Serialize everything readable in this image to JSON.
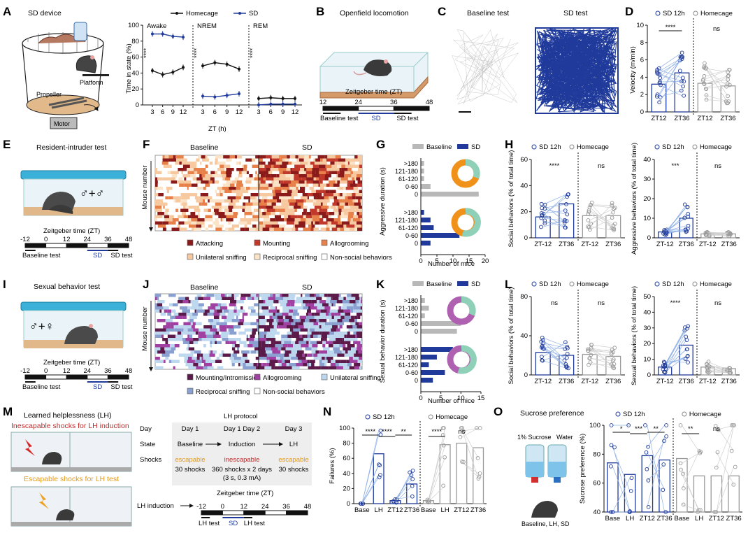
{
  "panel_letters": {
    "A": "A",
    "B": "B",
    "C": "C",
    "D": "D",
    "E": "E",
    "F": "F",
    "G": "G",
    "H": "H",
    "I": "I",
    "J": "J",
    "K": "K",
    "L": "L",
    "M": "M",
    "N": "N",
    "O": "O"
  },
  "panelA": {
    "title": "SD device",
    "labels": {
      "platform": "Platform",
      "propeller": "Propeller",
      "motor": "Motor"
    },
    "legend": {
      "homecage": "Homecage",
      "sd": "SD"
    },
    "ylabel": "Time in state (%)",
    "xlabel": "ZT (h)",
    "state_labels": [
      "Awake",
      "NREM",
      "REM"
    ],
    "yticks": [
      "0",
      "20",
      "40",
      "60",
      "80",
      "100"
    ],
    "xticks": [
      "3",
      "6",
      "9",
      "12"
    ],
    "sig": "****"
  },
  "panelB": {
    "title": "Openfield locomotion",
    "zt_label": "Zeitgeber time (ZT)",
    "ticks": [
      "12",
      "24",
      "36",
      "48"
    ],
    "baseline": "Baseline test",
    "sd": "SD",
    "sdtest": "SD test"
  },
  "panelC": {
    "baseline": "Baseline test",
    "sd": "SD test"
  },
  "panelD": {
    "legend": {
      "sd": "SD 12h",
      "homecage": "Homecage"
    },
    "ylabel": "Velocity (m/min)",
    "yticks": [
      "0",
      "2",
      "4",
      "6",
      "8",
      "10"
    ],
    "xticks": [
      "ZT12",
      "ZT36",
      "ZT12",
      "ZT36"
    ],
    "sig": [
      "****",
      "ns"
    ]
  },
  "panelE": {
    "title": "Resident-intruder test",
    "sex": "♂+♂",
    "zt_label": "Zeitgeber time (ZT)",
    "ticks": [
      "-12",
      "0",
      "12",
      "24",
      "36",
      "48"
    ],
    "baseline": "Baseline test",
    "sd": "SD",
    "sdtest": "SD test"
  },
  "panelF": {
    "baseline": "Baseline",
    "sd": "SD",
    "ylabel": "Mouse number",
    "legend": [
      "Attacking",
      "Mounting",
      "Allogrooming",
      "Unilateral sniffing",
      "Reciprocal sniffing",
      "Non-social behaviors"
    ],
    "legend_colors": [
      "#8b1a1a",
      "#c0392b",
      "#e8804a",
      "#f6c9a0",
      "#fbe3c8",
      "#ffffff"
    ]
  },
  "panelG": {
    "legend": {
      "baseline": "Baseline",
      "sd": "SD"
    },
    "ylabel": "Aggressive duration (s)",
    "xlabel": "Number of mice",
    "cats": [
      ">180",
      "121-180",
      "61-120",
      "0-60",
      "0"
    ],
    "xticks": [
      "0",
      "5",
      "10",
      "15",
      "20"
    ]
  },
  "panelH": {
    "legend": {
      "sd": "SD 12h",
      "homecage": "Homecage"
    },
    "ylabel1": "Social behaviors (% of total time)",
    "ylabel2": "Aggressive behaviors (% of total time)",
    "yticks1": [
      "0",
      "20",
      "40",
      "60"
    ],
    "yticks2": [
      "0",
      "10",
      "20",
      "30",
      "40"
    ],
    "xticks": [
      "ZT-12",
      "ZT36",
      "ZT-12",
      "ZT36"
    ],
    "sig1": [
      "****",
      "ns"
    ],
    "sig2": [
      "***",
      "ns"
    ]
  },
  "panelI": {
    "title": "Sexual behavior test",
    "sex": "♂+♀",
    "zt_label": "Zeitgeber time (ZT)",
    "ticks": [
      "-12",
      "0",
      "12",
      "24",
      "36",
      "48"
    ],
    "baseline": "Baseline test",
    "sd": "SD",
    "sdtest": "SD test"
  },
  "panelJ": {
    "baseline": "Baseline",
    "sd": "SD",
    "ylabel": "Mouse number",
    "legend": [
      "Mounting/Intromission",
      "Allogrooming",
      "Unilateral sniffing",
      "Reciprocal sniffing",
      "Non-social behaviors"
    ],
    "legend_colors": [
      "#5b1a4a",
      "#a040a0",
      "#bcd7ee",
      "#8aa0d0",
      "#ffffff"
    ]
  },
  "panelK": {
    "legend": {
      "baseline": "Baseline",
      "sd": "SD"
    },
    "ylabel": "Sexual behavior duration (s)",
    "xlabel": "Number of mice",
    "cats": [
      ">180",
      "121-180",
      "61-120",
      "0-60",
      "0"
    ],
    "xticks": [
      "0",
      "5",
      "10",
      "15"
    ]
  },
  "panelL": {
    "legend": {
      "sd": "SD 12h",
      "homecage": "Homecage"
    },
    "ylabel1": "Social behaviors (% of total time)",
    "ylabel2": "Sexual behaviors (% of total time)",
    "yticks1": [
      "0",
      "40",
      "80"
    ],
    "yticks2": [
      "0",
      "10",
      "20",
      "30",
      "40",
      "50"
    ],
    "xticks": [
      "ZT-12",
      "ZT36",
      "ZT-12",
      "ZT36"
    ],
    "sig1": [
      "ns",
      "ns"
    ],
    "sig2": [
      "****",
      "ns"
    ]
  },
  "panelM": {
    "title": "Learned helplessness (LH)",
    "inescapable": "Inescapable shocks for LH induction",
    "escapable": "Escapable shocks for LH test",
    "protocol_title": "LH protocol",
    "rows": [
      "Day",
      "State",
      "Shocks"
    ],
    "days": [
      "Day 1",
      "Day 1   Day 2",
      "Day 3"
    ],
    "states": [
      "Baseline",
      "Induction",
      "LH"
    ],
    "shocks_kind": [
      "escapable",
      "inescapable",
      "escapable"
    ],
    "shocks_detail": [
      "30 shocks",
      "360 shocks x 2 days",
      "(3 s, 0.3 mA)",
      "30 shocks"
    ],
    "lh_induction": "LH induction",
    "zt_label": "Zeitgeber time (ZT)",
    "ticks": [
      "-12",
      "0",
      "12",
      "24",
      "36",
      "48"
    ],
    "lhtest": "LH test",
    "sd": "SD"
  },
  "panelN": {
    "legend": {
      "sd": "SD 12h",
      "homecage": "Homecage"
    },
    "ylabel": "Failures (%)",
    "yticks": [
      "0",
      "20",
      "40",
      "60",
      "80",
      "100"
    ],
    "xticks": [
      "Base",
      "LH",
      "ZT12",
      "ZT36",
      "Base",
      "LH",
      "ZT12",
      "ZT36"
    ],
    "sig": [
      "****",
      "****",
      "**",
      "****",
      "ns"
    ]
  },
  "panelO": {
    "title": "Sucrose preference",
    "sucrose": "1% Sucrose",
    "water": "Water",
    "caption": "Baseline, LH, SD",
    "legend": {
      "sd": "SD 12h",
      "homecage": "Homecage"
    },
    "ylabel": "Sucrose preference (%)",
    "yticks": [
      "40",
      "60",
      "80",
      "100"
    ],
    "xticks": [
      "Base",
      "LH",
      "ZT12",
      "ZT36",
      "Base",
      "LH",
      "ZT12",
      "ZT36"
    ],
    "sig": [
      "*",
      "***",
      "**",
      "**",
      "ns"
    ]
  },
  "chart_data": [
    {
      "type": "line",
      "title": "Awake",
      "ylabel": "Time in state (%)",
      "xlabel": "ZT (h)",
      "x": [
        3,
        6,
        9,
        12
      ],
      "ylim": [
        0,
        100
      ],
      "series": [
        {
          "name": "Homecage",
          "values": [
            43,
            38,
            41,
            47
          ]
        },
        {
          "name": "SD",
          "values": [
            89,
            89,
            86,
            85
          ]
        }
      ]
    },
    {
      "type": "line",
      "title": "NREM",
      "x": [
        3,
        6,
        9,
        12
      ],
      "ylim": [
        0,
        100
      ],
      "series": [
        {
          "name": "Homecage",
          "values": [
            49,
            53,
            51,
            45
          ]
        },
        {
          "name": "SD",
          "values": [
            11,
            10,
            12,
            14
          ]
        }
      ]
    },
    {
      "type": "line",
      "title": "REM",
      "x": [
        3,
        6,
        9,
        12
      ],
      "ylim": [
        0,
        100
      ],
      "series": [
        {
          "name": "Homecage",
          "values": [
            8,
            9,
            8,
            8
          ]
        },
        {
          "name": "SD",
          "values": [
            0,
            1,
            1,
            1
          ]
        }
      ]
    },
    {
      "type": "bar",
      "ylabel": "Velocity (m/min)",
      "categories": [
        "ZT12",
        "ZT36",
        "ZT12",
        "ZT36"
      ],
      "values": [
        3.2,
        4.5,
        3.3,
        3.0
      ],
      "ylim": [
        0,
        10
      ]
    },
    {
      "type": "bar",
      "xlabel": "Number of mice",
      "ylabel": "Aggressive duration (s)",
      "categories": [
        ">180",
        "121-180",
        "61-120",
        "0-60",
        "0"
      ],
      "series": [
        {
          "name": "Baseline",
          "values": [
            1,
            1,
            1,
            3,
            18
          ]
        },
        {
          "name": "SD",
          "values": [
            1,
            3,
            4,
            12,
            3
          ]
        }
      ]
    },
    {
      "type": "bar",
      "ylabel": "Social behaviors (% of total time)",
      "categories": [
        "ZT-12",
        "ZT36",
        "ZT-12",
        "ZT36"
      ],
      "values": [
        16,
        26,
        17,
        17
      ],
      "ylim": [
        0,
        60
      ]
    },
    {
      "type": "bar",
      "ylabel": "Aggressive behaviors (% of total time)",
      "categories": [
        "ZT-12",
        "ZT36",
        "ZT-12",
        "ZT36"
      ],
      "values": [
        3,
        10,
        2,
        2
      ],
      "ylim": [
        0,
        40
      ]
    },
    {
      "type": "bar",
      "xlabel": "Number of mice",
      "ylabel": "Sexual behavior duration (s)",
      "categories": [
        ">180",
        "121-180",
        "61-120",
        "0-60",
        "0"
      ],
      "series": [
        {
          "name": "Baseline",
          "values": [
            1,
            2,
            1,
            10,
            9
          ]
        },
        {
          "name": "SD",
          "values": [
            8,
            4,
            2,
            6,
            3
          ]
        }
      ]
    },
    {
      "type": "bar",
      "ylabel": "Social behaviors (% of total time)",
      "categories": [
        "ZT-12",
        "ZT36",
        "ZT-12",
        "ZT36"
      ],
      "values": [
        23,
        20,
        21,
        19
      ],
      "ylim": [
        0,
        80
      ]
    },
    {
      "type": "bar",
      "ylabel": "Sexual behaviors (% of total time)",
      "categories": [
        "ZT-12",
        "ZT36",
        "ZT-12",
        "ZT36"
      ],
      "values": [
        5,
        19,
        5,
        4
      ],
      "ylim": [
        0,
        50
      ]
    },
    {
      "type": "bar",
      "ylabel": "Failures (%)",
      "categories": [
        "Base",
        "LH",
        "ZT12",
        "ZT36",
        "Base",
        "LH",
        "ZT12",
        "ZT36"
      ],
      "values": [
        0,
        66,
        4,
        26,
        4,
        78,
        80,
        74
      ],
      "ylim": [
        0,
        100
      ]
    },
    {
      "type": "bar",
      "ylabel": "Sucrose preference (%)",
      "categories": [
        "Base",
        "LH",
        "ZT12",
        "ZT36",
        "Base",
        "LH",
        "ZT12",
        "ZT36"
      ],
      "values": [
        74,
        66,
        79,
        76,
        77,
        65,
        65,
        65
      ],
      "ylim": [
        40,
        100
      ]
    }
  ],
  "colors": {
    "navy": "#1f3a9a",
    "gray": "#9a9a9a",
    "lightblue": "#8fb0e6"
  }
}
